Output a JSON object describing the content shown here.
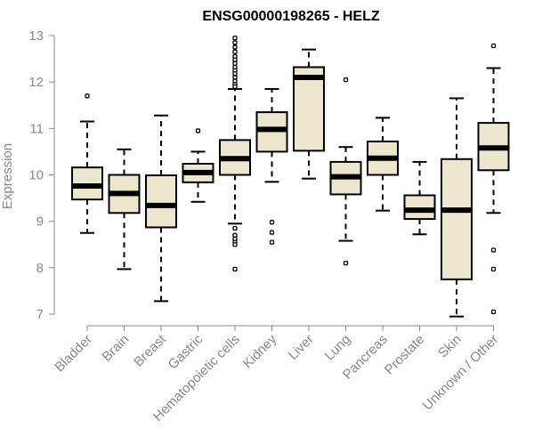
{
  "chart_data": {
    "type": "boxplot",
    "title": "ENSG00000198265 - HELZ",
    "xlabel": "",
    "ylabel": "Expression",
    "ylim": [
      6.85,
      13.1
    ],
    "yticks": [
      7,
      8,
      9,
      10,
      11,
      12,
      13
    ],
    "box_fill": "#ede6cf",
    "categories": [
      "Bladder",
      "Brain",
      "Breast",
      "Gastric",
      "Hematopoietic cells",
      "Kidney",
      "Liver",
      "Lung",
      "Pancreas",
      "Prostate",
      "Skin",
      "Unknown / Other"
    ],
    "boxes": [
      {
        "category": "Bladder",
        "whisker_low": 8.75,
        "q1": 9.47,
        "median": 9.76,
        "q3": 10.16,
        "whisker_high": 11.15,
        "outliers": [
          11.7
        ]
      },
      {
        "category": "Brain",
        "whisker_low": 7.97,
        "q1": 9.18,
        "median": 9.6,
        "q3": 10.0,
        "whisker_high": 10.55,
        "outliers": []
      },
      {
        "category": "Breast",
        "whisker_low": 7.28,
        "q1": 8.87,
        "median": 9.34,
        "q3": 9.99,
        "whisker_high": 11.28,
        "outliers": []
      },
      {
        "category": "Gastric",
        "whisker_low": 9.42,
        "q1": 9.84,
        "median": 10.05,
        "q3": 10.24,
        "whisker_high": 10.5,
        "outliers": [
          10.95
        ]
      },
      {
        "category": "Hematopoietic cells",
        "whisker_low": 8.95,
        "q1": 10.0,
        "median": 10.35,
        "q3": 10.75,
        "whisker_high": 11.85,
        "outliers": [
          12.95,
          12.85,
          12.75,
          12.65,
          12.55,
          12.48,
          12.4,
          12.32,
          12.25,
          12.18,
          12.1,
          12.02,
          11.95,
          11.9,
          8.85,
          8.7,
          8.62,
          8.55,
          8.5,
          7.97
        ]
      },
      {
        "category": "Kidney",
        "whisker_low": 9.85,
        "q1": 10.5,
        "median": 10.98,
        "q3": 11.35,
        "whisker_high": 11.85,
        "outliers": [
          8.98,
          8.76,
          8.55
        ]
      },
      {
        "category": "Liver",
        "whisker_low": 9.92,
        "q1": 10.52,
        "median": 12.1,
        "q3": 12.32,
        "whisker_high": 12.7,
        "outliers": []
      },
      {
        "category": "Lung",
        "whisker_low": 8.58,
        "q1": 9.58,
        "median": 9.96,
        "q3": 10.28,
        "whisker_high": 10.6,
        "outliers": [
          12.05,
          8.1
        ]
      },
      {
        "category": "Pancreas",
        "whisker_low": 9.23,
        "q1": 10.0,
        "median": 10.36,
        "q3": 10.72,
        "whisker_high": 11.23,
        "outliers": []
      },
      {
        "category": "Prostate",
        "whisker_low": 8.72,
        "q1": 9.05,
        "median": 9.24,
        "q3": 9.56,
        "whisker_high": 10.28,
        "outliers": []
      },
      {
        "category": "Skin",
        "whisker_low": 6.95,
        "q1": 7.75,
        "median": 9.24,
        "q3": 10.34,
        "whisker_high": 11.65,
        "outliers": []
      },
      {
        "category": "Unknown / Other",
        "whisker_low": 9.18,
        "q1": 10.1,
        "median": 10.58,
        "q3": 11.12,
        "whisker_high": 12.3,
        "outliers": [
          12.78,
          8.38,
          7.97,
          7.05
        ]
      }
    ]
  }
}
